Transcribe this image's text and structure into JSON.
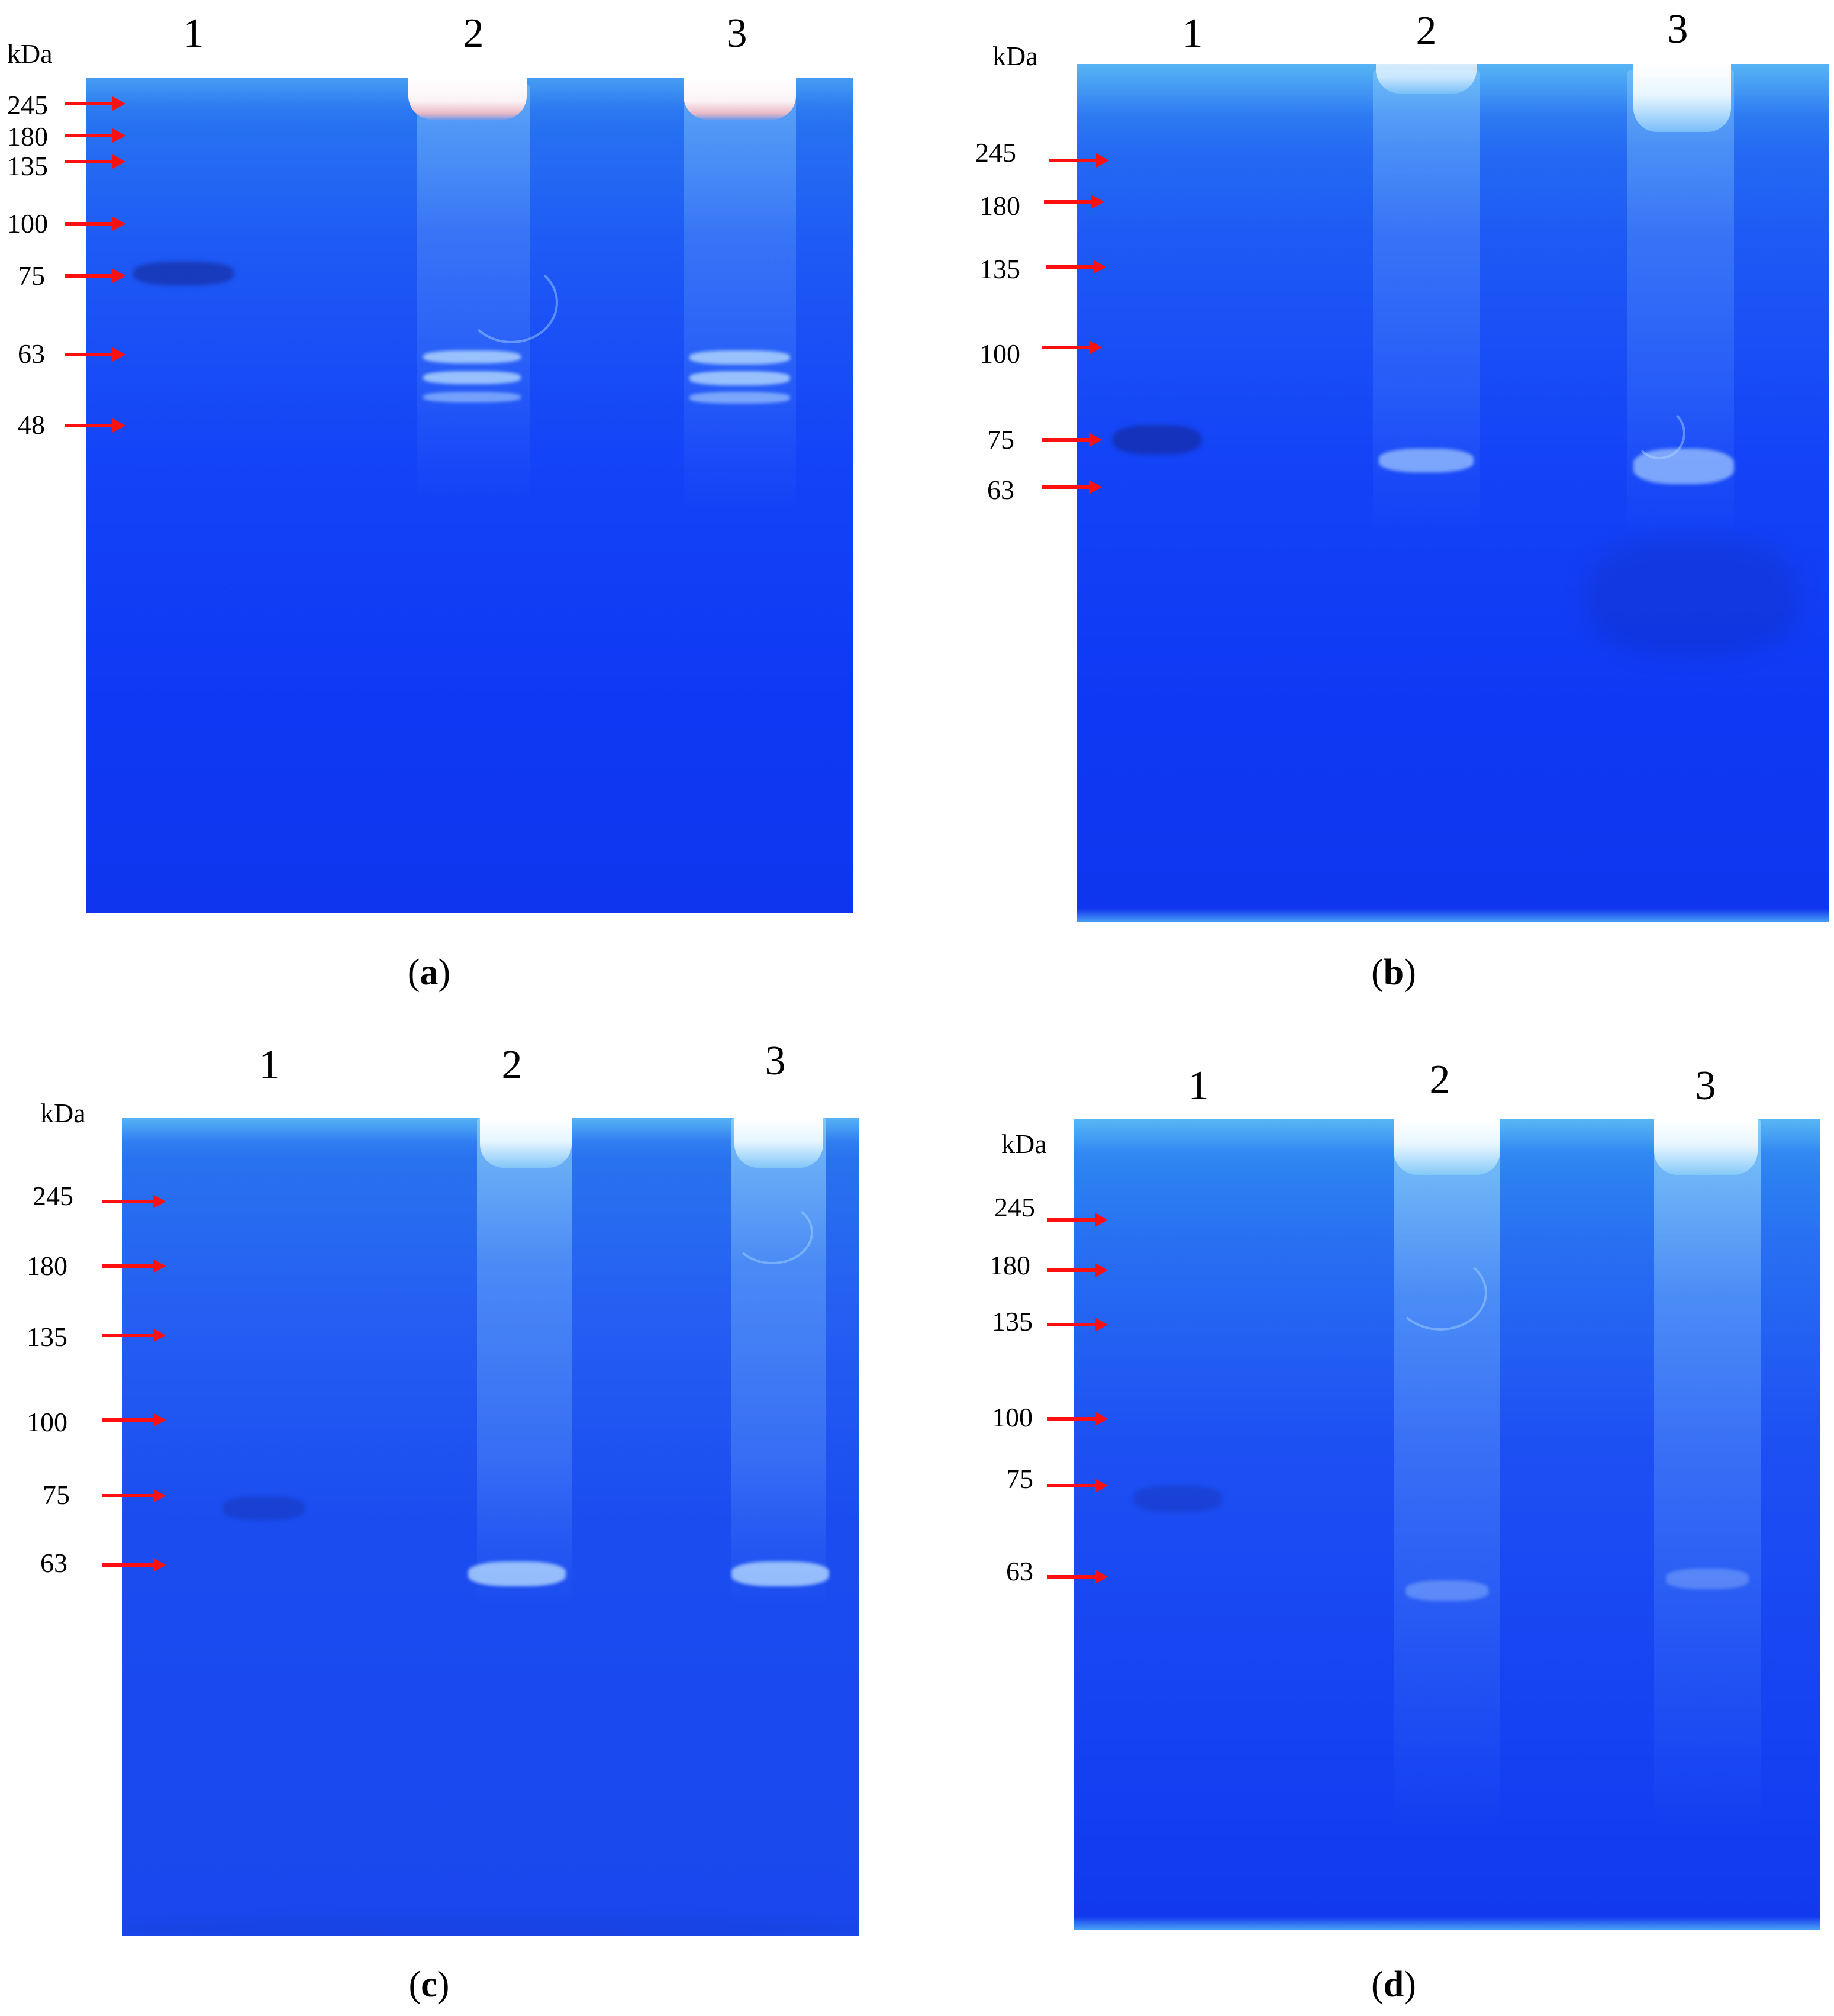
{
  "panels": [
    {
      "caption_open": "(",
      "caption_letter": "a",
      "caption_close": ")",
      "unit_label": "kDa",
      "lane_labels": [
        "1",
        "2",
        "3"
      ],
      "markers": [
        "245",
        "180",
        "135",
        "100",
        "75",
        "63",
        "48"
      ]
    },
    {
      "caption_open": "(",
      "caption_letter": "b",
      "caption_close": ")",
      "unit_label": "kDa",
      "lane_labels": [
        "1",
        "2",
        "3"
      ],
      "markers": [
        "245",
        "180",
        "135",
        "100",
        "75",
        "63"
      ]
    },
    {
      "caption_open": "(",
      "caption_letter": "c",
      "caption_close": ")",
      "unit_label": "kDa",
      "lane_labels": [
        "1",
        "2",
        "3"
      ],
      "markers": [
        "245",
        "180",
        "135",
        "100",
        "75",
        "63"
      ]
    },
    {
      "caption_open": "(",
      "caption_letter": "d",
      "caption_close": ")",
      "unit_label": "kDa",
      "lane_labels": [
        "1",
        "2",
        "3"
      ],
      "markers": [
        "245",
        "180",
        "135",
        "100",
        "75",
        "63"
      ]
    }
  ],
  "colors": {
    "gel_blue": "#1444f7",
    "marker_arrow": "#ff1010",
    "well_highlight": "#ffffff"
  }
}
